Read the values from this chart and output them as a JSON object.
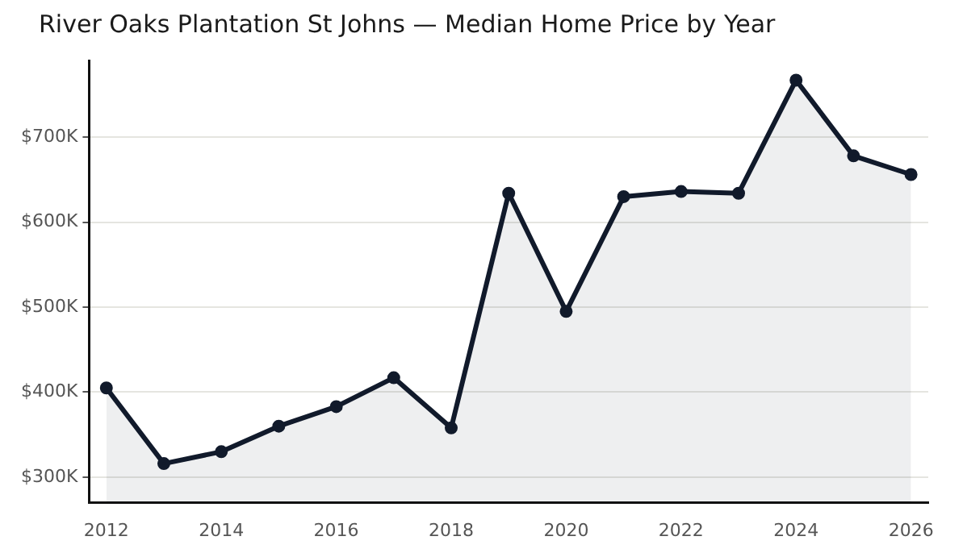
{
  "chart_data": {
    "type": "area",
    "title": "River Oaks Plantation St Johns — Median Home Price by Year",
    "x": [
      2012,
      2013,
      2014,
      2015,
      2016,
      2017,
      2018,
      2019,
      2020,
      2021,
      2022,
      2023,
      2024,
      2025,
      2026
    ],
    "series": [
      {
        "color": "#111a2b",
        "values": [
          405000,
          316000,
          330000,
          360000,
          383000,
          417000,
          358000,
          634000,
          495000,
          630000,
          636000,
          634000,
          767000,
          678000,
          656000
        ]
      }
    ],
    "xlim": [
      2011.7,
      2026.3
    ],
    "xticks": [
      2012,
      2014,
      2016,
      2018,
      2020,
      2022,
      2024,
      2026
    ],
    "ylim": [
      270000,
      790000
    ],
    "yticks": [
      {
        "value": 300000,
        "label": "$300K"
      },
      {
        "value": 400000,
        "label": "$400K"
      },
      {
        "value": 500000,
        "label": "$500K"
      },
      {
        "value": 600000,
        "label": "$600K"
      },
      {
        "value": 700000,
        "label": "$700K"
      }
    ],
    "grid": "y",
    "legend": false,
    "marker": "circle",
    "line_style": "solid"
  }
}
